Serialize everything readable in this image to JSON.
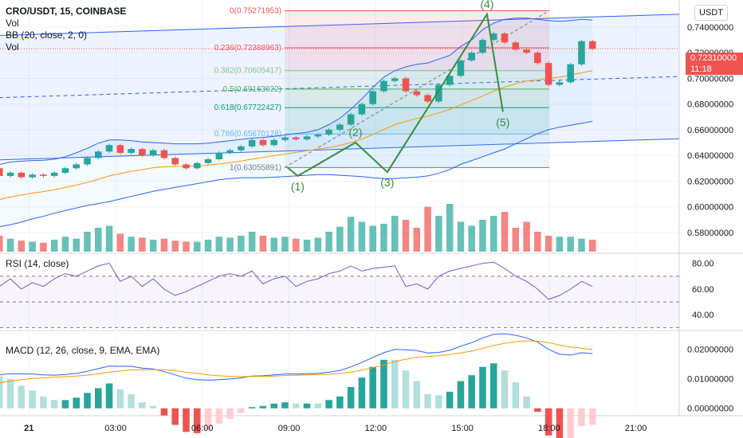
{
  "legend": {
    "symbol": "CRO/USDT, 15, COINBASE",
    "vol": "Vol",
    "bb": "BB (20, close, 2, 0)",
    "vol2": "Vol",
    "rsi": "RSI (14, close)",
    "macd": "MACD (12, 26, close, 9, EMA, EMA)"
  },
  "currency_button": "USDT",
  "current_price": {
    "value": "0.72310000",
    "countdown": "11:18",
    "color": "#ef5350"
  },
  "colors": {
    "up": "#26a69a",
    "down": "#ef5350",
    "bb_line": "#2962ff",
    "ema": "#ff9800",
    "zigzag": "#388e3c",
    "rsi": "#7e57c2",
    "channel": "#2962ff",
    "macd_line": "#2962ff",
    "signal_line": "#ff9800"
  },
  "chart_data": [
    {
      "type": "candlestick",
      "title": "CRO/USDT, 15, COINBASE",
      "ylim": [
        0.565,
        0.758
      ],
      "price_ticks": [
        "0.74000000",
        "0.72000000",
        "0.70000000",
        "0.68000000",
        "0.66000000",
        "0.64000000",
        "0.62000000",
        "0.60000000",
        "0.58000000"
      ],
      "x_ticks": [
        "21",
        "03:00",
        "06:00",
        "09:00",
        "12:00",
        "15:00",
        "18:00",
        "21:00"
      ],
      "x_tick_hours": [
        0,
        3,
        6,
        9,
        12,
        15,
        18,
        21
      ],
      "x_range_hours": [
        -1.0,
        22.5
      ],
      "close": [
        0.5805,
        0.5812,
        0.5798,
        0.5806,
        0.5815,
        0.5808,
        0.5796,
        0.5804,
        0.58,
        0.5812,
        0.5806,
        0.5798,
        0.579,
        0.5802,
        0.5795,
        0.581,
        0.5822,
        0.5814,
        0.5828,
        0.5818,
        0.5806,
        0.5815,
        0.5822,
        0.5812,
        0.5805,
        0.5814,
        0.5822,
        0.5815,
        0.581,
        0.5818,
        0.5828,
        0.582,
        0.5828,
        0.5838,
        0.583,
        0.5845,
        0.5838,
        0.585,
        0.5844,
        0.5852,
        0.5865,
        0.59,
        0.595,
        0.5995,
        0.603,
        0.6015,
        0.6045,
        0.6012,
        0.605,
        0.603,
        0.608,
        0.612,
        0.616,
        0.62,
        0.63,
        0.624,
        0.6265,
        0.623,
        0.625,
        0.624,
        0.6265,
        0.63,
        0.633,
        0.638,
        0.643,
        0.648,
        0.642,
        0.645,
        0.64,
        0.644,
        0.638,
        0.633,
        0.63,
        0.634,
        0.637,
        0.642,
        0.644,
        0.647,
        0.652,
        0.648,
        0.652,
        0.654,
        0.6525,
        0.6548,
        0.6562,
        0.66,
        0.664,
        0.672,
        0.68,
        0.69,
        0.698,
        0.7,
        0.69,
        0.687,
        0.682,
        0.695,
        0.702,
        0.714,
        0.72,
        0.73,
        0.735,
        0.728,
        0.7225,
        0.72,
        0.712,
        0.695,
        0.697,
        0.711,
        0.729,
        0.7231
      ],
      "ma_ema": [
        0.578,
        0.5782,
        0.5781,
        0.5782,
        0.5784,
        0.5784,
        0.5783,
        0.5784,
        0.5784,
        0.5786,
        0.5786,
        0.5785,
        0.5784,
        0.5786,
        0.5785,
        0.5788,
        0.5791,
        0.5792,
        0.5795,
        0.5797,
        0.5797,
        0.5799,
        0.5801,
        0.5802,
        0.5802,
        0.5803,
        0.5805,
        0.5806,
        0.5806,
        0.5807,
        0.581,
        0.5811,
        0.5813,
        0.5815,
        0.5817,
        0.582,
        0.5822,
        0.5825,
        0.5827,
        0.5829,
        0.5833,
        0.584,
        0.5851,
        0.5864,
        0.588,
        0.5893,
        0.5908,
        0.5918,
        0.5931,
        0.594,
        0.5954,
        0.5969,
        0.5987,
        0.6007,
        0.6036,
        0.6056,
        0.6076,
        0.6091,
        0.6106,
        0.6118,
        0.6133,
        0.615,
        0.6169,
        0.619,
        0.6214,
        0.624,
        0.6258,
        0.6277,
        0.6289,
        0.6304,
        0.6311,
        0.6314,
        0.6315,
        0.6318,
        0.6324,
        0.6333,
        0.6344,
        0.6356,
        0.6372,
        0.6384,
        0.6398,
        0.6411,
        0.6423,
        0.6436,
        0.6448,
        0.6462,
        0.6478,
        0.65,
        0.6528,
        0.6563,
        0.6602,
        0.664,
        0.6666,
        0.6688,
        0.6706,
        0.6731,
        0.6758,
        0.6794,
        0.6828,
        0.6864,
        0.6901,
        0.6932,
        0.6958,
        0.6979,
        0.6988,
        0.6999,
        0.701,
        0.7026,
        0.7044,
        0.706
      ],
      "bb_upper": [
        0.585,
        0.5852,
        0.585,
        0.585,
        0.5852,
        0.585,
        0.5848,
        0.5848,
        0.5846,
        0.5848,
        0.5846,
        0.5845,
        0.5844,
        0.5844,
        0.5843,
        0.5845,
        0.585,
        0.5852,
        0.5858,
        0.586,
        0.5858,
        0.586,
        0.5862,
        0.586,
        0.5858,
        0.5858,
        0.586,
        0.5858,
        0.5856,
        0.5857,
        0.586,
        0.586,
        0.5862,
        0.5866,
        0.5866,
        0.587,
        0.587,
        0.5875,
        0.5876,
        0.588,
        0.5888,
        0.5915,
        0.596,
        0.601,
        0.6055,
        0.6075,
        0.61,
        0.611,
        0.6125,
        0.6132,
        0.615,
        0.618,
        0.6215,
        0.625,
        0.631,
        0.633,
        0.6348,
        0.6355,
        0.636,
        0.6362,
        0.637,
        0.639,
        0.642,
        0.6455,
        0.6495,
        0.652,
        0.652,
        0.6515,
        0.6505,
        0.65,
        0.6495,
        0.649,
        0.649,
        0.649,
        0.6495,
        0.6505,
        0.6515,
        0.6525,
        0.6535,
        0.654,
        0.6548,
        0.656,
        0.657,
        0.658,
        0.66,
        0.664,
        0.669,
        0.676,
        0.684,
        0.693,
        0.701,
        0.706,
        0.709,
        0.711,
        0.712,
        0.715,
        0.718,
        0.725,
        0.73,
        0.738,
        0.743,
        0.746,
        0.747,
        0.747,
        0.746,
        0.745,
        0.7445,
        0.745,
        0.746,
        0.7455
      ],
      "bb_lower": [
        0.574,
        0.5742,
        0.5742,
        0.5744,
        0.5746,
        0.5746,
        0.5745,
        0.5746,
        0.5746,
        0.5748,
        0.5748,
        0.5748,
        0.5746,
        0.5748,
        0.5746,
        0.5748,
        0.5752,
        0.5754,
        0.5758,
        0.576,
        0.576,
        0.5762,
        0.5764,
        0.5766,
        0.5766,
        0.5768,
        0.577,
        0.5772,
        0.5772,
        0.5774,
        0.5776,
        0.5778,
        0.578,
        0.5782,
        0.5784,
        0.5786,
        0.5788,
        0.579,
        0.5792,
        0.5794,
        0.5796,
        0.579,
        0.578,
        0.5765,
        0.575,
        0.5745,
        0.575,
        0.576,
        0.577,
        0.5778,
        0.579,
        0.58,
        0.581,
        0.582,
        0.583,
        0.5845,
        0.586,
        0.588,
        0.5905,
        0.5925,
        0.595,
        0.597,
        0.599,
        0.601,
        0.6025,
        0.604,
        0.606,
        0.608,
        0.61,
        0.612,
        0.6135,
        0.615,
        0.6165,
        0.618,
        0.6195,
        0.621,
        0.622,
        0.6225,
        0.6225,
        0.6225,
        0.623,
        0.6235,
        0.624,
        0.6245,
        0.625,
        0.625,
        0.6245,
        0.624,
        0.6235,
        0.6225,
        0.622,
        0.622,
        0.6225,
        0.623,
        0.624,
        0.626,
        0.629,
        0.633,
        0.636,
        0.639,
        0.642,
        0.645,
        0.649,
        0.653,
        0.657,
        0.66,
        0.662,
        0.6635,
        0.665,
        0.6665
      ],
      "volume": [
        0.9,
        0.6,
        1.2,
        0.7,
        0.5,
        0.8,
        1.0,
        0.6,
        0.5,
        0.7,
        0.9,
        1.1,
        0.6,
        0.5,
        0.8,
        0.7,
        1.2,
        0.6,
        0.9,
        0.7,
        0.5,
        0.6,
        0.8,
        0.7,
        0.5,
        0.6,
        0.9,
        0.5,
        0.4,
        0.6,
        0.8,
        0.7,
        0.6,
        0.9,
        0.5,
        0.7,
        0.6,
        0.8,
        0.5,
        0.6,
        0.7,
        0.9,
        1.2,
        1.0,
        1.4,
        0.8,
        1.3,
        1.0,
        1.6,
        0.9,
        1.8,
        1.6,
        1.5,
        1.4,
        2.2,
        1.6,
        1.3,
        1.1,
        1.0,
        0.9,
        1.2,
        1.5,
        1.3,
        2.0,
        2.4,
        2.6,
        1.8,
        1.5,
        1.4,
        1.2,
        1.3,
        1.1,
        1.0,
        1.0,
        1.2,
        1.5,
        1.4,
        1.6,
        2.0,
        1.6,
        1.4,
        1.5,
        1.3,
        1.2,
        1.4,
        2.0,
        2.5,
        3.5,
        3.0,
        2.6,
        2.8,
        3.6,
        3.2,
        2.4,
        4.5,
        3.6,
        4.8,
        3.0,
        2.6,
        3.2,
        3.6,
        4.0,
        2.4,
        3.0,
        2.0,
        1.6,
        1.5,
        1.5,
        1.3,
        1.2
      ],
      "annotations": {
        "fib_levels": [
          {
            "ratio": "0",
            "price": 0.75271953,
            "label": "0(0.75271953)"
          },
          {
            "ratio": "0.236",
            "price": 0.72388963,
            "label": "0.236(0.72388963)"
          },
          {
            "ratio": "0.382",
            "price": 0.70605417,
            "label": "0.382(0.70605417)"
          },
          {
            "ratio": "0.5",
            "price": 0.69163922,
            "label": "0.5(0.69163922)"
          },
          {
            "ratio": "0.618",
            "price": 0.67722427,
            "label": "0.618(0.67722427)"
          },
          {
            "ratio": "0.786",
            "price": 0.65670128,
            "label": "0.786(0.65670128)"
          },
          {
            "ratio": "1",
            "price": 0.63055891,
            "label": "1(0.63055891)"
          }
        ],
        "waves": [
          {
            "label": "(1)",
            "hour": 9.3,
            "price": 0.624
          },
          {
            "label": "(2)",
            "hour": 11.3,
            "price": 0.65
          },
          {
            "label": "(3)",
            "hour": 12.4,
            "price": 0.627
          },
          {
            "label": "(4)",
            "hour": 15.85,
            "price": 0.75
          },
          {
            "label": "(5)",
            "hour": 16.4,
            "price": 0.674
          }
        ]
      }
    },
    {
      "type": "line",
      "title": "RSI (14, close)",
      "ylim": [
        29,
        86
      ],
      "ticks": [
        "80.00",
        "60.00",
        "40.00"
      ],
      "tick_values": [
        80,
        60,
        40
      ],
      "bands": [
        70,
        50,
        30
      ],
      "values": [
        62,
        58,
        65,
        55,
        60,
        52,
        66,
        58,
        54,
        62,
        50,
        47,
        55,
        49,
        58,
        45,
        41,
        47,
        52,
        58,
        55,
        61,
        57,
        50,
        53,
        60,
        56,
        48,
        52,
        58,
        51,
        55,
        62,
        56,
        51,
        58,
        54,
        60,
        55,
        52,
        62,
        68,
        72,
        66,
        75,
        69,
        74,
        60,
        66,
        58,
        68,
        72,
        66,
        70,
        76,
        62,
        68,
        60,
        65,
        62,
        68,
        72,
        70,
        74,
        78,
        80,
        66,
        70,
        62,
        68,
        60,
        55,
        58,
        62,
        66,
        70,
        72,
        70,
        74,
        64,
        68,
        70,
        62,
        66,
        68,
        72,
        74,
        78,
        74,
        76,
        77,
        78,
        62,
        64,
        60,
        70,
        74,
        76,
        78,
        80,
        81,
        76,
        70,
        66,
        60,
        52,
        55,
        60,
        66,
        62
      ]
    },
    {
      "type": "bar",
      "title": "MACD (12, 26, close, 9, EMA, EMA)",
      "ylim": [
        -0.0025,
        0.0255
      ],
      "ticks": [
        "0.02000000",
        "0.01000000",
        "0.00000000"
      ],
      "tick_values": [
        0.02,
        0.01,
        0.0
      ],
      "series": [
        {
          "name": "MACD",
          "values": [
            0.0004,
            0.0004,
            0.0003,
            0.0003,
            0.0004,
            0.0004,
            0.0003,
            0.0003,
            0.0003,
            0.0004,
            0.0003,
            0.0002,
            0.0001,
            0.0002,
            0.0001,
            0.0002,
            0.0004,
            0.0004,
            0.0006,
            0.0006,
            0.0005,
            0.0006,
            0.0007,
            0.0006,
            0.0005,
            0.0005,
            0.0006,
            0.0006,
            0.0005,
            0.0006,
            0.0007,
            0.0007,
            0.0008,
            0.0009,
            0.0009,
            0.001,
            0.001,
            0.0011,
            0.0011,
            0.0012,
            0.0014,
            0.002,
            0.003,
            0.0042,
            0.0054,
            0.006,
            0.0066,
            0.0066,
            0.0068,
            0.0067,
            0.0072,
            0.0078,
            0.0085,
            0.0093,
            0.0108,
            0.0113,
            0.0117,
            0.0116,
            0.0116,
            0.0113,
            0.0112,
            0.0114,
            0.0118,
            0.0125,
            0.0134,
            0.0143,
            0.0142,
            0.0142,
            0.0136,
            0.0133,
            0.0124,
            0.0113,
            0.0102,
            0.0097,
            0.0095,
            0.0097,
            0.0099,
            0.0103,
            0.0109,
            0.011,
            0.0113,
            0.0116,
            0.0116,
            0.0117,
            0.0118,
            0.0122,
            0.0128,
            0.014,
            0.0155,
            0.0172,
            0.0188,
            0.0199,
            0.0198,
            0.0195,
            0.0187,
            0.0189,
            0.0196,
            0.021,
            0.0222,
            0.0238,
            0.025,
            0.0252,
            0.0247,
            0.0238,
            0.0224,
            0.0199,
            0.0183,
            0.018,
            0.0188,
            0.0185
          ]
        },
        {
          "name": "Signal",
          "values": [
            0.0005,
            0.0005,
            0.0005,
            0.0004,
            0.0004,
            0.0004,
            0.0004,
            0.0004,
            0.0004,
            0.0004,
            0.0004,
            0.0003,
            0.0003,
            0.0003,
            0.0002,
            0.0002,
            0.0003,
            0.0003,
            0.0004,
            0.0004,
            0.0005,
            0.0005,
            0.0005,
            0.0005,
            0.0005,
            0.0005,
            0.0005,
            0.0005,
            0.0005,
            0.0006,
            0.0006,
            0.0006,
            0.0006,
            0.0007,
            0.0007,
            0.0008,
            0.0008,
            0.0009,
            0.0009,
            0.001,
            0.001,
            0.0012,
            0.0016,
            0.0021,
            0.0028,
            0.0034,
            0.004,
            0.0045,
            0.0049,
            0.0053,
            0.0056,
            0.0061,
            0.0066,
            0.0071,
            0.0079,
            0.0086,
            0.0092,
            0.0097,
            0.0101,
            0.0103,
            0.0105,
            0.0107,
            0.0109,
            0.0112,
            0.0117,
            0.0122,
            0.0126,
            0.013,
            0.0131,
            0.0131,
            0.013,
            0.0127,
            0.0122,
            0.0118,
            0.0113,
            0.011,
            0.0108,
            0.0107,
            0.0108,
            0.0108,
            0.0109,
            0.0111,
            0.0112,
            0.0113,
            0.0114,
            0.0115,
            0.0118,
            0.0122,
            0.0129,
            0.0137,
            0.0147,
            0.0158,
            0.0166,
            0.0172,
            0.0175,
            0.0178,
            0.0182,
            0.0187,
            0.0194,
            0.0203,
            0.0212,
            0.022,
            0.0225,
            0.0228,
            0.0227,
            0.0222,
            0.0214,
            0.0207,
            0.0203,
            0.0199
          ]
        }
      ]
    }
  ]
}
